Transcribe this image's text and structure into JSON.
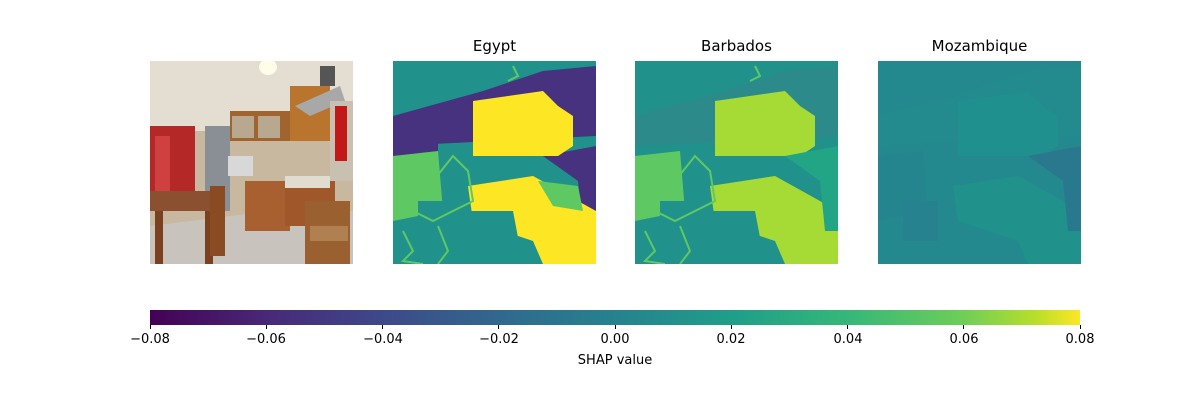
{
  "chart_data": {
    "type": "heatmap",
    "panels": [
      {
        "title": "",
        "kind": "image",
        "description_color": "#a0643a"
      },
      {
        "title": "Egypt",
        "kind": "shap_map"
      },
      {
        "title": "Barbados",
        "kind": "shap_map"
      },
      {
        "title": "Mozambique",
        "kind": "shap_map"
      }
    ],
    "colorbar": {
      "cmap": "viridis",
      "vmin": -0.08,
      "vmax": 0.08,
      "ticks": [
        -0.08,
        -0.06,
        -0.04,
        -0.02,
        0.0,
        0.02,
        0.04,
        0.06,
        0.08
      ],
      "tick_labels": [
        "−0.08",
        "−0.06",
        "−0.04",
        "−0.02",
        "0.00",
        "0.02",
        "0.04",
        "0.06",
        "0.08"
      ],
      "label": "SHAP value"
    },
    "colors": {
      "viridis_low": "#440154",
      "viridis_mid_low": "#3b528b",
      "viridis_mid": "#21918c",
      "viridis_mid_high": "#5ec962",
      "viridis_high": "#fde725"
    }
  }
}
